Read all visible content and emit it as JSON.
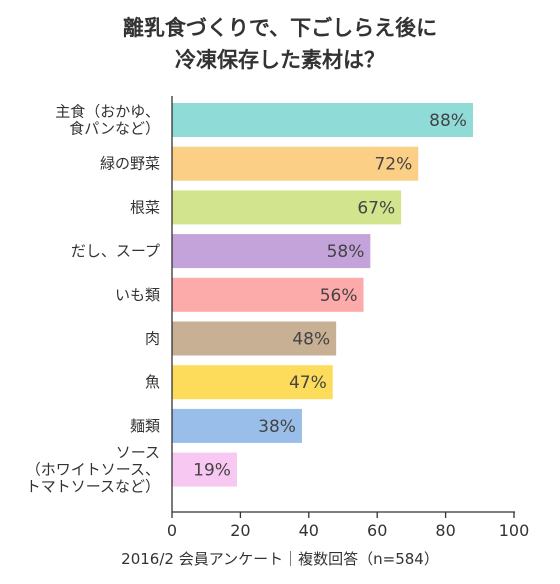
{
  "header": {
    "title_line1": "離乳食づくりで、下ごしらえ後に",
    "title_line2": "冷凍保存した素材は？"
  },
  "footer": {
    "source": "2016/2 会員アンケート｜複数回答（n=584）"
  },
  "chart_data": {
    "type": "bar",
    "orientation": "horizontal",
    "title": "離乳食づくりで、下ごしらえ後に冷凍保存した素材は？",
    "categories": [
      [
        "主食（おかゆ、",
        "食パンなど）"
      ],
      [
        "緑の野菜"
      ],
      [
        "根菜"
      ],
      [
        "だし、スープ"
      ],
      [
        "いも類"
      ],
      [
        "肉"
      ],
      [
        "魚"
      ],
      [
        "麺類"
      ],
      [
        "ソース",
        "（ホワイトソース、",
        "トマトソースなど）"
      ]
    ],
    "values": [
      88,
      72,
      67,
      58,
      56,
      48,
      47,
      38,
      19
    ],
    "value_labels": [
      "88%",
      "72%",
      "67%",
      "58%",
      "56%",
      "48%",
      "47%",
      "38%",
      "19%"
    ],
    "colors": [
      "#8edbd7",
      "#fccf86",
      "#d3e48e",
      "#c4a2da",
      "#fdaaaa",
      "#c8b095",
      "#fddc5c",
      "#98bee9",
      "#f7c8f2"
    ],
    "xlim": [
      0,
      100
    ],
    "xticks": [
      "0",
      "20",
      "40",
      "60",
      "80",
      "100"
    ],
    "xlabel": "",
    "ylabel": "",
    "grid": false,
    "legend": "none"
  }
}
